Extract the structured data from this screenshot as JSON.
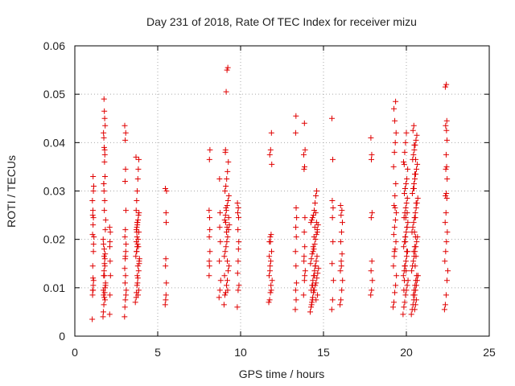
{
  "chart_data": {
    "type": "scatter",
    "title": "Day 231 of 2018, Rate Of TEC Index for receiver mizu",
    "xlabel": "GPS time / hours",
    "ylabel": "ROTI / TECUs",
    "xlim": [
      0,
      25
    ],
    "ylim": [
      0,
      0.06
    ],
    "x_ticks": [
      0,
      5,
      10,
      15,
      20,
      25
    ],
    "x_tick_labels": [
      "0",
      "5",
      "10",
      "15",
      "20",
      "25"
    ],
    "y_ticks": [
      0,
      0.01,
      0.02,
      0.03,
      0.04,
      0.05,
      0.06
    ],
    "y_tick_labels": [
      "0",
      "0.01",
      "0.02",
      "0.03",
      "0.04",
      "0.05",
      "0.06"
    ],
    "grid": true,
    "marker": "+",
    "color": "#e00000",
    "series": [
      {
        "name": "ROTI",
        "x": [
          1.05,
          1.07,
          1.08,
          1.1,
          1.12,
          1.13,
          1.15,
          1.1,
          1.08,
          1.06,
          1.12,
          1.14,
          1.1,
          1.08,
          1.11,
          1.13,
          1.09,
          1.07,
          1.12,
          1.1,
          1.7,
          1.72,
          1.75,
          1.78,
          1.8,
          1.82,
          1.85,
          1.74,
          1.76,
          1.79,
          1.81,
          1.83,
          1.77,
          1.73,
          1.71,
          1.84,
          1.86,
          1.78,
          1.8,
          1.76,
          1.74,
          1.82,
          1.79,
          1.81,
          1.77,
          1.75,
          1.73,
          1.83,
          1.8,
          1.78,
          1.76,
          1.72,
          1.85,
          1.79,
          1.81,
          1.77,
          1.74,
          1.82,
          1.8,
          1.75,
          2.1,
          2.12,
          2.15,
          2.13,
          2.11,
          2.14,
          2.1,
          2.12,
          3.0,
          3.02,
          3.05,
          3.08,
          3.1,
          3.03,
          3.06,
          3.01,
          3.04,
          3.07,
          3.09,
          3.02,
          3.05,
          3.08,
          3.03,
          3.06,
          3.04,
          3.07,
          3.01,
          3.05,
          3.65,
          3.7,
          3.72,
          3.75,
          3.78,
          3.8,
          3.85,
          3.88,
          3.9,
          3.68,
          3.73,
          3.76,
          3.79,
          3.82,
          3.86,
          3.71,
          3.74,
          3.77,
          3.81,
          3.84,
          3.87,
          3.7,
          3.73,
          3.76,
          3.8,
          3.83,
          3.86,
          3.69,
          3.72,
          3.75,
          3.78,
          3.81,
          3.85,
          3.88,
          3.71,
          3.74,
          3.77,
          3.8,
          3.83,
          3.76,
          5.45,
          5.48,
          5.5,
          5.52,
          5.47,
          5.49,
          5.51,
          5.5,
          5.46,
          5.53,
          8.1,
          8.12,
          8.15,
          8.11,
          8.14,
          8.13,
          8.1,
          8.12,
          8.15,
          8.11,
          8.7,
          8.75,
          8.8,
          8.72,
          8.78,
          8.74,
          8.76,
          8.73,
          9.0,
          9.05,
          9.1,
          9.15,
          9.2,
          9.25,
          9.3,
          9.02,
          9.07,
          9.12,
          9.17,
          9.22,
          9.27,
          9.32,
          9.04,
          9.09,
          9.14,
          9.19,
          9.24,
          9.29,
          9.06,
          9.11,
          9.16,
          9.21,
          9.26,
          9.08,
          9.13,
          9.18,
          9.23,
          9.03,
          9.1,
          9.15,
          9.2,
          9.09,
          9.12,
          9.18,
          9.22,
          9.28,
          9.8,
          9.85,
          9.9,
          9.82,
          9.87,
          9.84,
          9.88,
          9.83,
          9.86,
          9.81,
          9.89,
          9.85,
          11.7,
          11.75,
          11.8,
          11.85,
          11.9,
          11.72,
          11.77,
          11.82,
          11.87,
          11.74,
          11.79,
          11.84,
          11.88,
          11.76,
          11.81,
          11.86,
          11.73,
          11.78,
          11.83,
          11.8,
          13.3,
          13.35,
          13.32,
          13.37,
          13.34,
          13.31,
          13.36,
          13.33,
          13.38,
          13.35,
          13.32,
          13.34,
          13.8,
          13.85,
          13.9,
          13.82,
          13.87,
          13.84,
          13.88,
          13.83,
          13.86,
          13.81,
          13.89,
          13.85,
          13.87,
          13.83,
          14.2,
          14.25,
          14.3,
          14.35,
          14.4,
          14.45,
          14.5,
          14.55,
          14.6,
          14.65,
          14.7,
          14.22,
          14.27,
          14.32,
          14.37,
          14.42,
          14.47,
          14.52,
          14.57,
          14.62,
          14.67,
          14.24,
          14.29,
          14.34,
          14.39,
          14.44,
          14.49,
          14.54,
          14.59,
          14.64,
          14.26,
          14.31,
          14.36,
          14.41,
          14.46,
          14.51,
          14.56,
          14.61,
          14.28,
          14.33,
          14.38,
          14.43,
          14.48,
          14.53,
          14.58,
          14.63,
          14.35,
          14.45,
          14.55,
          14.4,
          14.5,
          15.5,
          15.55,
          15.6,
          15.52,
          15.57,
          15.54,
          15.58,
          15.53,
          15.56,
          15.51,
          16.0,
          16.05,
          16.1,
          16.15,
          16.02,
          16.07,
          16.12,
          16.04,
          16.09,
          16.14,
          16.06,
          16.11,
          16.03,
          16.08,
          17.85,
          17.9,
          17.95,
          17.87,
          17.92,
          17.88,
          17.93,
          17.89,
          17.91,
          17.86,
          19.2,
          19.25,
          19.3,
          19.35,
          19.4,
          19.22,
          19.27,
          19.32,
          19.37,
          19.24,
          19.29,
          19.34,
          19.39,
          19.26,
          19.31,
          19.36,
          19.23,
          19.28,
          19.33,
          19.38,
          19.3,
          19.25,
          19.35,
          19.32,
          19.28,
          19.8,
          19.85,
          19.9,
          19.95,
          20.0,
          20.05,
          20.1,
          19.82,
          19.87,
          19.92,
          19.97,
          20.02,
          20.07,
          19.84,
          19.89,
          19.94,
          19.99,
          20.04,
          20.09,
          19.86,
          19.91,
          19.96,
          20.01,
          20.06,
          19.88,
          19.93,
          19.98,
          20.03,
          20.08,
          19.83,
          19.9,
          19.95,
          20.0,
          19.87,
          19.92,
          20.05,
          19.98,
          19.85,
          19.93,
          20.02,
          19.9,
          19.96,
          20.04,
          19.88,
          19.94,
          20.3,
          20.35,
          20.4,
          20.45,
          20.5,
          20.55,
          20.6,
          20.65,
          20.7,
          20.32,
          20.37,
          20.42,
          20.47,
          20.52,
          20.57,
          20.62,
          20.67,
          20.34,
          20.39,
          20.44,
          20.49,
          20.54,
          20.59,
          20.64,
          20.69,
          20.36,
          20.41,
          20.46,
          20.51,
          20.56,
          20.61,
          20.66,
          20.38,
          20.43,
          20.48,
          20.53,
          20.58,
          20.63,
          20.4,
          20.45,
          20.5,
          20.55,
          20.6,
          20.42,
          20.47,
          20.52,
          20.57,
          20.62,
          20.44,
          20.49,
          20.54,
          20.59,
          20.46,
          20.51,
          20.56,
          20.48,
          20.53,
          20.58,
          20.5,
          20.55,
          22.3,
          22.35,
          22.4,
          22.45,
          22.5,
          22.32,
          22.37,
          22.42,
          22.47,
          22.34,
          22.39,
          22.44,
          22.36,
          22.41,
          22.46,
          22.38,
          22.43,
          22.4,
          22.45,
          22.42,
          22.37,
          22.44,
          22.35,
          22.41
        ],
        "y": [
          0.0035,
          0.0085,
          0.0095,
          0.012,
          0.0175,
          0.019,
          0.0205,
          0.023,
          0.025,
          0.028,
          0.03,
          0.031,
          0.033,
          0.0145,
          0.0105,
          0.0115,
          0.026,
          0.021,
          0.0245,
          0.0095,
          0.004,
          0.005,
          0.0065,
          0.008,
          0.009,
          0.01,
          0.011,
          0.0125,
          0.0135,
          0.015,
          0.016,
          0.017,
          0.018,
          0.019,
          0.02,
          0.022,
          0.024,
          0.026,
          0.028,
          0.03,
          0.0315,
          0.033,
          0.036,
          0.0375,
          0.039,
          0.041,
          0.042,
          0.0435,
          0.045,
          0.0465,
          0.049,
          0.0095,
          0.0105,
          0.0125,
          0.0145,
          0.0165,
          0.0085,
          0.0075,
          0.0385,
          0.0315,
          0.0045,
          0.0085,
          0.0125,
          0.0155,
          0.0185,
          0.0215,
          0.0225,
          0.0195,
          0.004,
          0.006,
          0.0075,
          0.0085,
          0.0095,
          0.011,
          0.0125,
          0.014,
          0.016,
          0.0175,
          0.019,
          0.0205,
          0.022,
          0.026,
          0.032,
          0.0345,
          0.0405,
          0.042,
          0.0435,
          0.0165,
          0.007,
          0.008,
          0.009,
          0.0105,
          0.011,
          0.012,
          0.0135,
          0.015,
          0.016,
          0.0165,
          0.0175,
          0.0185,
          0.019,
          0.02,
          0.0215,
          0.022,
          0.0225,
          0.023,
          0.024,
          0.025,
          0.0255,
          0.026,
          0.028,
          0.03,
          0.0325,
          0.0345,
          0.0365,
          0.037,
          0.0175,
          0.0205,
          0.0235,
          0.0085,
          0.0095,
          0.0155,
          0.0195,
          0.0215,
          0.0125,
          0.0145,
          0.0185,
          0.0235,
          0.0065,
          0.0075,
          0.0085,
          0.011,
          0.0145,
          0.016,
          0.0235,
          0.0255,
          0.0305,
          0.03,
          0.0125,
          0.0145,
          0.0175,
          0.0205,
          0.022,
          0.0245,
          0.026,
          0.0365,
          0.0385,
          0.0155,
          0.008,
          0.0095,
          0.0115,
          0.0155,
          0.0195,
          0.0225,
          0.0255,
          0.0325,
          0.0065,
          0.0085,
          0.009,
          0.0105,
          0.0115,
          0.0135,
          0.0145,
          0.0165,
          0.0175,
          0.0185,
          0.0195,
          0.0205,
          0.022,
          0.023,
          0.024,
          0.025,
          0.026,
          0.027,
          0.028,
          0.029,
          0.03,
          0.031,
          0.0325,
          0.034,
          0.036,
          0.038,
          0.0505,
          0.055,
          0.0555,
          0.0125,
          0.0235,
          0.0215,
          0.0155,
          0.0385,
          0.0265,
          0.0225,
          0.0095,
          0.0245,
          0.006,
          0.0095,
          0.0105,
          0.013,
          0.018,
          0.022,
          0.0245,
          0.0255,
          0.0265,
          0.0275,
          0.0195,
          0.0155,
          0.007,
          0.0075,
          0.009,
          0.0095,
          0.0115,
          0.0125,
          0.0135,
          0.0155,
          0.0175,
          0.0195,
          0.0205,
          0.021,
          0.0355,
          0.0375,
          0.0385,
          0.042,
          0.0165,
          0.0145,
          0.0105,
          0.0195,
          0.0055,
          0.0075,
          0.0095,
          0.011,
          0.0145,
          0.0175,
          0.0205,
          0.0225,
          0.0245,
          0.0265,
          0.042,
          0.0455,
          0.0085,
          0.0115,
          0.0135,
          0.0155,
          0.0185,
          0.0215,
          0.0245,
          0.0345,
          0.035,
          0.0375,
          0.0385,
          0.044,
          0.0125,
          0.0165,
          0.005,
          0.006,
          0.007,
          0.008,
          0.009,
          0.0095,
          0.0105,
          0.011,
          0.012,
          0.013,
          0.014,
          0.015,
          0.016,
          0.017,
          0.0175,
          0.018,
          0.019,
          0.02,
          0.021,
          0.022,
          0.023,
          0.0235,
          0.024,
          0.0245,
          0.025,
          0.026,
          0.0275,
          0.029,
          0.03,
          0.0085,
          0.0095,
          0.0105,
          0.0115,
          0.0125,
          0.0135,
          0.0145,
          0.0155,
          0.0165,
          0.0065,
          0.0075,
          0.0185,
          0.0205,
          0.0225,
          0.0255,
          0.0235,
          0.0215,
          0.0105,
          0.0125,
          0.0075,
          0.0095,
          0.0145,
          0.0055,
          0.0075,
          0.0115,
          0.015,
          0.0195,
          0.0245,
          0.0265,
          0.028,
          0.0365,
          0.045,
          0.0065,
          0.0075,
          0.0095,
          0.0115,
          0.0135,
          0.0155,
          0.017,
          0.0195,
          0.0215,
          0.0235,
          0.025,
          0.026,
          0.027,
          0.0145,
          0.0085,
          0.0095,
          0.0115,
          0.0135,
          0.0155,
          0.0245,
          0.0255,
          0.0365,
          0.0375,
          0.041,
          0.006,
          0.007,
          0.009,
          0.0105,
          0.0125,
          0.0145,
          0.0165,
          0.018,
          0.0195,
          0.021,
          0.0225,
          0.024,
          0.0255,
          0.027,
          0.029,
          0.0315,
          0.035,
          0.038,
          0.04,
          0.042,
          0.0445,
          0.047,
          0.0485,
          0.0265,
          0.0175,
          0.0045,
          0.006,
          0.007,
          0.0085,
          0.0095,
          0.0105,
          0.0115,
          0.0125,
          0.0135,
          0.0145,
          0.0155,
          0.0165,
          0.0175,
          0.0185,
          0.0195,
          0.0205,
          0.0215,
          0.0225,
          0.0235,
          0.0245,
          0.0255,
          0.0265,
          0.0275,
          0.0285,
          0.0295,
          0.0305,
          0.0315,
          0.0325,
          0.0345,
          0.036,
          0.038,
          0.04,
          0.042,
          0.0355,
          0.0305,
          0.0255,
          0.0135,
          0.0095,
          0.0205,
          0.0175,
          0.0145,
          0.0245,
          0.0225,
          0.0115,
          0.0195,
          0.0045,
          0.0055,
          0.0065,
          0.0075,
          0.0085,
          0.0095,
          0.0105,
          0.0115,
          0.0125,
          0.0135,
          0.0145,
          0.0155,
          0.0165,
          0.0175,
          0.0185,
          0.0195,
          0.0205,
          0.0215,
          0.0225,
          0.0235,
          0.0245,
          0.0255,
          0.0265,
          0.0275,
          0.0285,
          0.0295,
          0.0305,
          0.0315,
          0.0325,
          0.0335,
          0.0345,
          0.0355,
          0.0365,
          0.0375,
          0.0385,
          0.0395,
          0.0405,
          0.0415,
          0.0425,
          0.0435,
          0.0055,
          0.0065,
          0.0075,
          0.0085,
          0.0095,
          0.0105,
          0.0115,
          0.0125,
          0.0175,
          0.0215,
          0.0245,
          0.0275,
          0.0305,
          0.0335,
          0.0365,
          0.0395,
          0.0145,
          0.0165,
          0.0185,
          0.0205,
          0.0055,
          0.0065,
          0.0085,
          0.0115,
          0.0135,
          0.0155,
          0.0175,
          0.0195,
          0.0215,
          0.0235,
          0.0255,
          0.0285,
          0.029,
          0.0295,
          0.0325,
          0.0345,
          0.035,
          0.0375,
          0.0405,
          0.0425,
          0.0435,
          0.0445,
          0.0515,
          0.052
        ]
      }
    ]
  }
}
